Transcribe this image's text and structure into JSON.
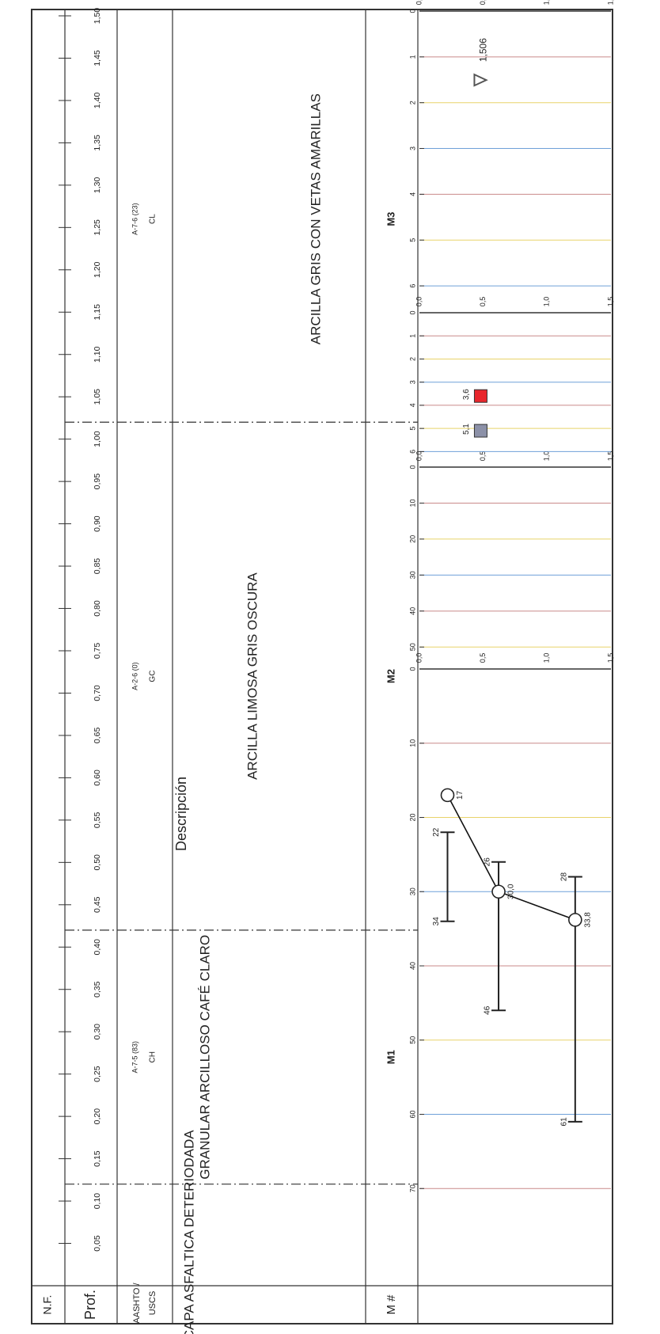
{
  "headers": {
    "nf": "N.F.",
    "prof": "Prof.",
    "aashto": "AASHTO /",
    "uscs": "USCS",
    "descripcion": "Descripción",
    "muestra": "M #"
  },
  "depth_ticks": [
    "0,05",
    "0,10",
    "0,15",
    "0,20",
    "0,25",
    "0,30",
    "0,35",
    "0,40",
    "0,45",
    "0,50",
    "0,55",
    "0,60",
    "0,65",
    "0,70",
    "0,75",
    "0,80",
    "0,85",
    "0,90",
    "0,95",
    "1,00",
    "1,05",
    "1,10",
    "1,15",
    "1,20",
    "1,25",
    "1,30",
    "1,35",
    "1,40",
    "1,45",
    "1,50"
  ],
  "strata": [
    {
      "description": "CAPA ASFALTICA DETERIODADA",
      "aashto": "",
      "uscs": "",
      "sample": "",
      "from": 0.0,
      "to": 0.12
    },
    {
      "description": "GRANULAR ARCILLOSO CAFÉ CLARO",
      "aashto": "A-7-5 (83)",
      "uscs": "CH",
      "sample": "M1",
      "from": 0.12,
      "to": 0.42
    },
    {
      "description": "ARCILLA LIMOSA GRIS OSCURA",
      "aashto": "A-2-6 (0)",
      "uscs": "GC",
      "sample": "M2",
      "from": 0.42,
      "to": 1.02
    },
    {
      "description": "ARCILLA GRIS CON VETAS AMARILLAS",
      "aashto": "A-7-6 (23)",
      "uscs": "CL",
      "sample": "M3",
      "from": 1.02,
      "to": 1.5
    }
  ],
  "depth_labels": {
    "d0": "0,0",
    "d05": "0,5",
    "d10": "1,0",
    "d15": "1,5"
  },
  "chart_data": [
    {
      "type": "line",
      "title": "",
      "xlabel": "",
      "x_ticks": [
        "0",
        "10",
        "20",
        "30",
        "40",
        "50",
        "60",
        "70"
      ],
      "xlim": [
        0,
        80
      ],
      "ylim": [
        0,
        1.5
      ],
      "series": [
        {
          "values": [
            {
              "depth": 0.22,
              "w": 17,
              "pl": 22,
              "ll": 34,
              "w_label": "17",
              "pl_label": "22",
              "ll_label": "34"
            },
            {
              "depth": 0.62,
              "w": 30.0,
              "pl": 26,
              "ll": 46,
              "w_label": "30,0",
              "pl_label": "26",
              "ll_label": "46"
            },
            {
              "depth": 1.22,
              "w": 33.8,
              "pl": 28,
              "ll": 61,
              "w_label": "33,8",
              "pl_label": "28",
              "ll_label": "61"
            }
          ]
        }
      ]
    },
    {
      "type": "scatter",
      "title": "",
      "x_ticks": [
        "0",
        "10",
        "20",
        "30",
        "40",
        "50"
      ],
      "xlim": [
        0,
        55
      ],
      "ylim": [
        0,
        1.5
      ],
      "series": []
    },
    {
      "type": "scatter",
      "title": "",
      "x_ticks": [
        "0",
        "1",
        "2",
        "3",
        "4",
        "5",
        "6"
      ],
      "xlim": [
        0,
        6.5
      ],
      "ylim": [
        0,
        1.5
      ],
      "series": [
        {
          "values": [
            {
              "x": 5.1,
              "depth": 0.48,
              "label": "5,1",
              "color": "#8c91a8",
              "marker": "square"
            },
            {
              "x": 3.6,
              "depth": 0.48,
              "label": "3,6",
              "color": "#e8262c",
              "marker": "square"
            }
          ]
        }
      ]
    },
    {
      "type": "scatter",
      "title": "",
      "x_ticks": [
        "0",
        "1",
        "2",
        "3",
        "4",
        "5",
        "6"
      ],
      "xlim": [
        0,
        6.5
      ],
      "ylim": [
        0,
        1.5
      ],
      "series": [
        {
          "values": [
            {
              "x": 1.506,
              "depth": 0.48,
              "label": "1,506",
              "color": "#555555",
              "marker": "triangle"
            }
          ]
        }
      ]
    }
  ],
  "colors": {
    "grid_blue": "#6fa0d8",
    "grid_red": "#c98a8a",
    "grid_yellow": "#e8d36a",
    "frame": "#333333"
  }
}
